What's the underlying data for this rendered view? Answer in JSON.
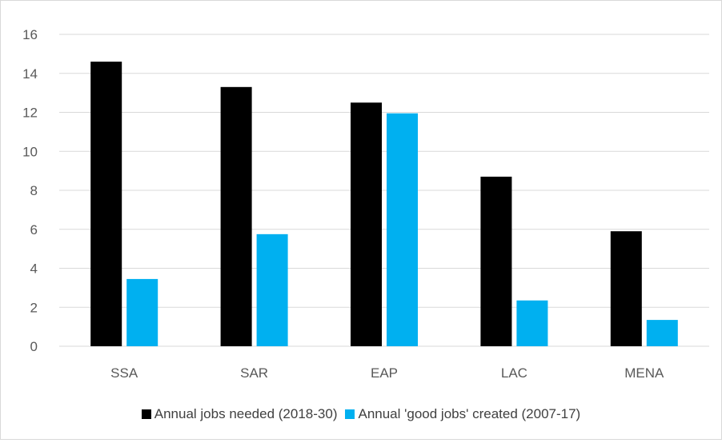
{
  "chart_data": {
    "type": "bar",
    "categories": [
      "SSA",
      "SAR",
      "EAP",
      "LAC",
      "MENA"
    ],
    "series": [
      {
        "name": "Annual jobs needed (2018-30)",
        "values": [
          14.6,
          13.3,
          12.5,
          8.7,
          5.9
        ],
        "color": "#000000"
      },
      {
        "name": "Annual 'good jobs' created (2007-17)",
        "values": [
          3.45,
          5.75,
          11.95,
          2.35,
          1.35
        ],
        "color": "#00b0f0"
      }
    ],
    "yticks": [
      "0",
      "2",
      "4",
      "6",
      "8",
      "10",
      "12",
      "14",
      "16"
    ],
    "ylim": [
      0,
      16
    ],
    "grid": true,
    "legend_position": "bottom"
  }
}
